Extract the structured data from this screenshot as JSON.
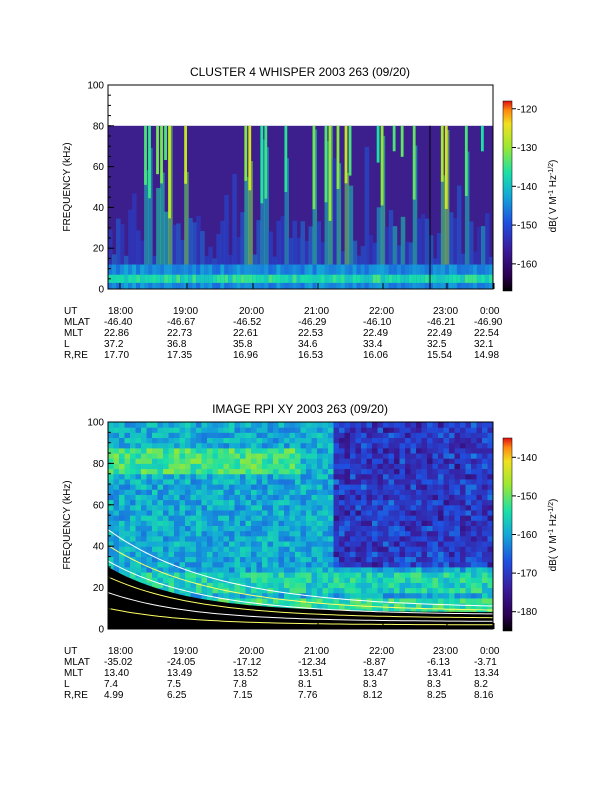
{
  "chart_data": [
    {
      "type": "heatmap",
      "title": "CLUSTER 4 WHISPER 2003 263 (09/20)",
      "ylabel": "FREQUENCY (kHz)",
      "ylim": [
        0,
        100
      ],
      "yticks": [
        "0",
        "20",
        "40",
        "60",
        "80",
        "100"
      ],
      "colorbar": {
        "label": "dB( V M",
        "label_sup1": "-1",
        "label_mid": " Hz",
        "label_sup2": "-1/2",
        "label_end": ")",
        "range": [
          -167,
          -118
        ],
        "ticks": [
          "-120",
          "-130",
          "-140",
          "-150",
          "-160"
        ]
      },
      "ephemeris": {
        "labels": [
          "UT",
          "MLAT",
          "MLT",
          "L",
          "R,RE"
        ],
        "columns": [
          [
            "18:00",
            "-46.40",
            "22.86",
            "37.2",
            "17.70"
          ],
          [
            "19:00",
            "-46.67",
            "22.73",
            "36.8",
            "17.35"
          ],
          [
            "20:00",
            "-46.52",
            "22.61",
            "35.8",
            "16.96"
          ],
          [
            "21:00",
            "-46.29",
            "22.53",
            "34.6",
            "16.53"
          ],
          [
            "22:00",
            "-46.10",
            "22.49",
            "33.4",
            "16.06"
          ],
          [
            "23:00",
            "-46.21",
            "22.49",
            "32.5",
            "15.54"
          ],
          [
            "0:00",
            "-46.90",
            "22.54",
            "32.1",
            "14.98"
          ]
        ]
      }
    },
    {
      "type": "heatmap",
      "title": "IMAGE RPI XY 2003 263 (09/20)",
      "ylabel": "FREQUENCY (kHz)",
      "ylim": [
        0,
        100
      ],
      "yticks": [
        "0",
        "20",
        "40",
        "60",
        "80",
        "100"
      ],
      "colorbar": {
        "label": "dB( V M",
        "label_sup1": "-1",
        "label_mid": " Hz",
        "label_sup2": "-1/2",
        "label_end": ")",
        "range": [
          -185,
          -135
        ],
        "ticks": [
          "-140",
          "-150",
          "-160",
          "-170",
          "-180"
        ]
      },
      "ephemeris": {
        "labels": [
          "UT",
          "MLAT",
          "MLT",
          "L",
          "R,RE"
        ],
        "columns": [
          [
            "18:00",
            "-35.02",
            "13.40",
            "7.4",
            "4.99"
          ],
          [
            "19:00",
            "-24.05",
            "13.49",
            "7.5",
            "6.25"
          ],
          [
            "20:00",
            "-17.12",
            "13.52",
            "7.8",
            "7.15"
          ],
          [
            "21:00",
            "-12.34",
            "13.51",
            "8.1",
            "7.76"
          ],
          [
            "22:00",
            "-8.87",
            "13.47",
            "8.3",
            "8.12"
          ],
          [
            "23:00",
            "-6.13",
            "13.41",
            "8.3",
            "8.25"
          ],
          [
            "0:00",
            "-3.71",
            "13.34",
            "8.2",
            "8.16"
          ]
        ]
      }
    }
  ]
}
